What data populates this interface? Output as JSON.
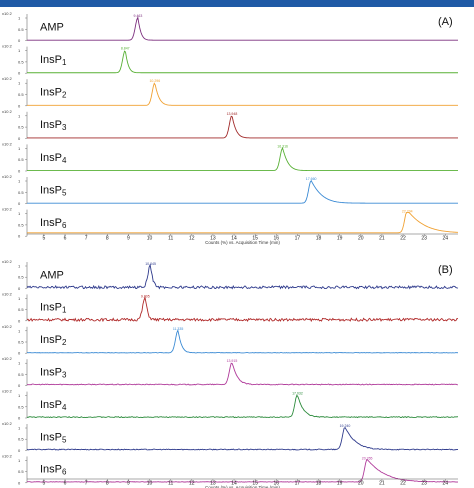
{
  "colors": {
    "top_bar": "#1f5aa6",
    "frame": "#000000"
  },
  "chart_data": [
    {
      "panel": "(A)",
      "type": "line",
      "x_axis": {
        "title": "Counts (%) vs. Acquisition Time (min)",
        "ticks": [
          5,
          6,
          7,
          8,
          9,
          10,
          11,
          12,
          13,
          14,
          15,
          16,
          17,
          18,
          19,
          20,
          21,
          22,
          23,
          24
        ],
        "range": [
          4.2,
          24.6
        ]
      },
      "y_ticks": [
        "1",
        "0.5",
        "0"
      ],
      "y_exponent": "x10 2",
      "series": [
        {
          "name": "AMP",
          "color": "#7b2d7d",
          "peak_x": 9.45,
          "peak_label": "9.463",
          "baseline": 0.02,
          "tail": 0.25
        },
        {
          "name": "InsP1",
          "color": "#58b035",
          "peak_x": 8.85,
          "peak_label": "8.847",
          "baseline": 0.02,
          "tail": 0.25
        },
        {
          "name": "InsP2",
          "color": "#f0a030",
          "peak_x": 10.25,
          "peak_label": "10.296",
          "baseline": 0.02,
          "tail": 0.35
        },
        {
          "name": "InsP3",
          "color": "#a02828",
          "peak_x": 13.9,
          "peak_label": "13.948",
          "baseline": 0.02,
          "tail": 0.35
        },
        {
          "name": "InsP4",
          "color": "#58b035",
          "peak_x": 16.3,
          "peak_label": "16.316",
          "baseline": 0.02,
          "tail": 0.45
        },
        {
          "name": "InsP5",
          "color": "#3a8ad4",
          "peak_x": 17.65,
          "peak_label": "17.660",
          "baseline": 0.02,
          "tail": 0.9
        },
        {
          "name": "InsP6",
          "color": "#f0a030",
          "peak_x": 22.2,
          "peak_label": "22.204",
          "baseline": 0.15,
          "tail": 1.4
        }
      ]
    },
    {
      "panel": "(B)",
      "type": "line",
      "x_axis": {
        "title": "Counts (%) vs. Acquisition Time (min)",
        "ticks": [
          5,
          6,
          7,
          8,
          9,
          10,
          11,
          12,
          13,
          14,
          15,
          16,
          17,
          18,
          19,
          20,
          21,
          22,
          23,
          24
        ],
        "range": [
          4.2,
          24.6
        ]
      },
      "y_ticks": [
        "1",
        "0.5",
        "0"
      ],
      "y_exponent": "x10 2",
      "series": [
        {
          "name": "AMP",
          "color": "#2e3a8c",
          "peak_x": 10.05,
          "peak_label": "10.045",
          "baseline": 0.05,
          "tail": 0.2,
          "noise": 0.06
        },
        {
          "name": "InsP1",
          "color": "#b02a2a",
          "peak_x": 9.8,
          "peak_label": "9.805",
          "baseline": 0.05,
          "tail": 0.2,
          "noise": 0.06
        },
        {
          "name": "InsP2",
          "color": "#3a8ad4",
          "peak_x": 11.35,
          "peak_label": "11.335",
          "baseline": 0.02,
          "tail": 0.3,
          "noise": 0.01
        },
        {
          "name": "InsP3",
          "color": "#b03a9a",
          "peak_x": 13.9,
          "peak_label": "13.915",
          "baseline": 0.05,
          "tail": 0.45,
          "noise": 0.02
        },
        {
          "name": "InsP4",
          "color": "#2a8a3a",
          "peak_x": 17.0,
          "peak_label": "17.032",
          "baseline": 0.04,
          "tail": 0.5,
          "noise": 0.02
        },
        {
          "name": "InsP5",
          "color": "#2e3a8c",
          "peak_x": 19.25,
          "peak_label": "19.240",
          "baseline": 0.04,
          "tail": 0.9,
          "noise": 0.02
        },
        {
          "name": "InsP6",
          "color": "#b03a9a",
          "peak_x": 20.3,
          "peak_label": "20.265",
          "baseline": 0.04,
          "tail": 1.5,
          "noise": 0.01
        }
      ]
    }
  ]
}
